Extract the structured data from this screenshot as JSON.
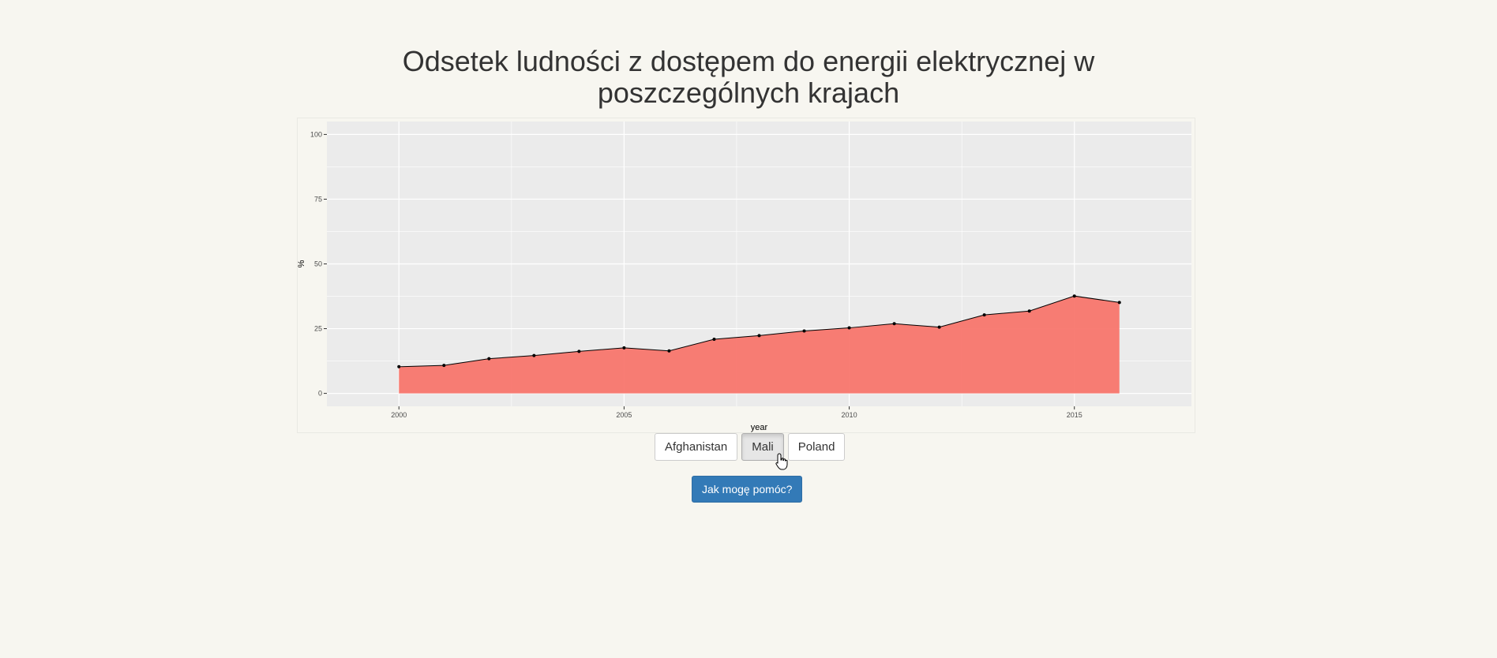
{
  "page": {
    "title": "Odsetek ludności z dostępem do energii elektrycznej w poszczególnych krajach"
  },
  "buttons": [
    {
      "label": "Afghanistan",
      "active": false
    },
    {
      "label": "Mali",
      "active": true
    },
    {
      "label": "Poland",
      "active": false
    }
  ],
  "help_button": {
    "label": "Jak mogę pomóc?"
  },
  "chart_data": {
    "type": "area",
    "title": "",
    "xlabel": "year",
    "ylabel": "%",
    "xlim": [
      1998.4,
      2017.6
    ],
    "ylim": [
      -5,
      105
    ],
    "x_ticks": [
      2000,
      2005,
      2010,
      2015
    ],
    "y_ticks": [
      0,
      25,
      50,
      75,
      100
    ],
    "grid": true,
    "colors": {
      "fill": "#f8766d",
      "line": "#000000",
      "panel": "#ebebeb",
      "grid": "#ffffff"
    },
    "x": [
      2000,
      2001,
      2002,
      2003,
      2004,
      2005,
      2006,
      2007,
      2008,
      2009,
      2010,
      2011,
      2012,
      2013,
      2014,
      2015,
      2016
    ],
    "values": [
      10.3,
      10.8,
      13.4,
      14.6,
      16.2,
      17.6,
      16.4,
      20.9,
      22.3,
      24.1,
      25.3,
      26.9,
      25.6,
      30.3,
      31.8,
      37.6,
      35.1
    ]
  }
}
